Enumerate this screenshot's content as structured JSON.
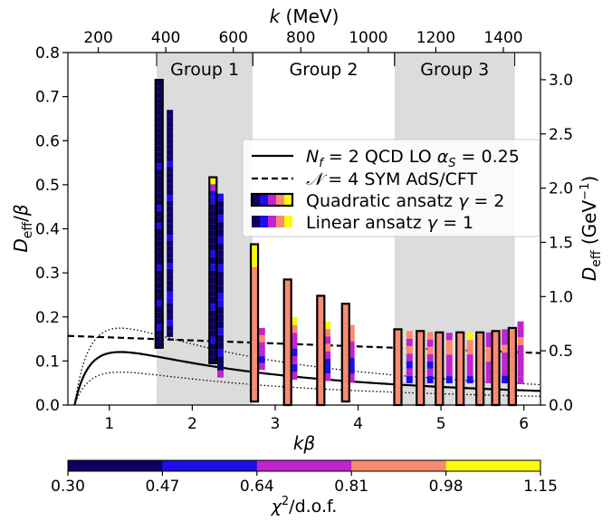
{
  "chart_data": {
    "type": "scatter",
    "x": {
      "label": "kβ",
      "range": [
        0.5,
        6.2
      ],
      "ticks": [
        1,
        2,
        3,
        4,
        5,
        6
      ],
      "tick_labels": [
        "1",
        "2",
        "3",
        "4",
        "5",
        "6"
      ]
    },
    "y_left": {
      "label": "D_eff/β",
      "range": [
        0.0,
        0.8
      ],
      "ticks": [
        0.0,
        0.1,
        0.2,
        0.3,
        0.4,
        0.5,
        0.6,
        0.7,
        0.8
      ],
      "tick_labels": [
        "0.0",
        "0.1",
        "0.2",
        "0.3",
        "0.4",
        "0.5",
        "0.6",
        "0.7",
        "0.8"
      ]
    },
    "y_right": {
      "label": "D_eff (GeV⁻¹)",
      "range": [
        0.0,
        3.25
      ],
      "ticks": [
        0.0,
        0.5,
        1.0,
        1.5,
        2.0,
        2.5,
        3.0
      ],
      "tick_labels": [
        "0.0",
        "0.5",
        "1.0",
        "1.5",
        "2.0",
        "2.5",
        "3.0"
      ]
    },
    "x_top": {
      "label": "k (MeV)",
      "range": [
        110,
        1510
      ],
      "ticks": [
        200,
        400,
        600,
        800,
        1000,
        1200,
        1400
      ],
      "tick_labels": [
        "200",
        "400",
        "600",
        "800",
        "1000",
        "1200",
        "1400"
      ]
    },
    "groups": [
      {
        "label": "Group 1",
        "x_range": [
          1.57,
          2.73
        ]
      },
      {
        "label": "Group 2",
        "x_range": [
          2.73,
          4.44
        ]
      },
      {
        "label": "Group 3",
        "x_range": [
          4.44,
          5.89
        ]
      }
    ],
    "legend": {
      "position": "center-right",
      "entries": [
        {
          "label": "N_f = 2 QCD LO α_S = 0.25",
          "style": "solid"
        },
        {
          "label": "𝒩 = 4 SYM AdS/CFT",
          "style": "dashed"
        },
        {
          "label": "Quadratic ansatz γ = 2",
          "style": "box-outlined"
        },
        {
          "label": "Linear ansatz γ = 1",
          "style": "box-plain"
        }
      ]
    },
    "colorbar": {
      "label": "χ²/d.o.f.",
      "boundaries": [
        0.3,
        0.47,
        0.64,
        0.81,
        0.98,
        1.15
      ],
      "tick_labels": [
        "0.30",
        "0.47",
        "0.64",
        "0.81",
        "0.98",
        "1.15"
      ],
      "colors": [
        "#0d0060",
        "#1e0ee8",
        "#c023cf",
        "#f98a70",
        "#fafa0c"
      ]
    },
    "curves": {
      "qcd_lo": {
        "A": 0.3,
        "B": -0.17,
        "C": -0.012
      },
      "qcd_band_upper_factor": 1.45,
      "qcd_band_lower_factor": 0.62,
      "sym_ads_cft": {
        "y_at_0p5": 0.157,
        "y_at_6p2": 0.118
      }
    },
    "quadratic_ansatz": [
      {
        "x": 1.6,
        "y_min": 0.13,
        "y_max": 0.738,
        "cells": [
          0,
          0,
          0,
          1,
          0,
          0,
          0,
          1,
          0,
          0,
          0,
          0,
          0,
          1,
          0,
          0,
          0,
          0,
          0,
          0,
          1,
          0,
          0,
          1,
          0,
          0,
          0,
          0,
          0,
          0,
          1,
          0,
          0,
          0,
          0,
          0,
          0,
          0,
          0,
          0,
          0,
          0,
          0,
          0,
          0
        ]
      },
      {
        "x": 2.25,
        "y_min": 0.095,
        "y_max": 0.517,
        "cells": [
          0,
          0,
          0,
          1,
          0,
          0,
          0,
          0,
          1,
          0,
          0,
          0,
          0,
          0,
          1,
          0,
          1,
          0,
          0,
          0,
          0,
          0,
          0,
          0,
          1,
          1,
          2,
          4
        ]
      },
      {
        "x": 2.75,
        "y_min": 0.008,
        "y_max": 0.365,
        "cells": [
          3,
          3,
          3,
          3,
          3,
          3,
          3,
          3,
          3,
          3,
          3,
          3,
          3,
          3,
          3,
          3,
          3,
          3,
          4,
          4,
          4
        ]
      },
      {
        "x": 3.15,
        "y_min": 0.0,
        "y_max": 0.285,
        "cells": [
          3,
          3,
          3,
          3,
          3,
          3,
          3,
          3,
          3,
          3,
          3,
          3,
          3,
          3,
          3,
          3,
          3
        ]
      },
      {
        "x": 3.55,
        "y_min": 0.0,
        "y_max": 0.248,
        "cells": [
          3,
          3,
          3,
          3,
          3,
          3,
          3,
          3,
          3,
          3,
          3,
          3,
          3,
          3,
          3
        ]
      },
      {
        "x": 3.85,
        "y_min": 0.008,
        "y_max": 0.23,
        "cells": [
          3,
          3,
          3,
          3,
          3,
          3,
          3,
          3,
          3,
          3,
          3,
          3,
          3
        ]
      },
      {
        "x": 4.48,
        "y_min": 0.0,
        "y_max": 0.172,
        "cells": [
          3,
          3,
          3,
          3,
          3,
          3,
          3,
          3,
          3,
          3
        ]
      },
      {
        "x": 4.75,
        "y_min": 0.0,
        "y_max": 0.168,
        "cells": [
          3,
          3,
          3,
          3,
          3,
          3,
          3,
          3,
          3,
          3
        ]
      },
      {
        "x": 4.98,
        "y_min": 0.0,
        "y_max": 0.165,
        "cells": [
          3,
          3,
          3,
          3,
          3,
          3,
          3,
          3,
          3,
          3
        ]
      },
      {
        "x": 5.23,
        "y_min": 0.0,
        "y_max": 0.165,
        "cells": [
          3,
          3,
          3,
          3,
          3,
          3,
          3,
          3,
          3,
          3
        ]
      },
      {
        "x": 5.47,
        "y_min": 0.0,
        "y_max": 0.165,
        "cells": [
          3,
          3,
          3,
          3,
          3,
          3,
          3,
          3,
          3,
          3
        ]
      },
      {
        "x": 5.66,
        "y_min": 0.0,
        "y_max": 0.168,
        "cells": [
          3,
          3,
          3,
          3,
          3,
          3,
          3,
          3,
          3,
          3
        ]
      },
      {
        "x": 5.86,
        "y_min": 0.0,
        "y_max": 0.175,
        "cells": [
          3,
          3,
          3,
          3,
          3,
          3,
          3,
          3,
          3,
          3
        ]
      }
    ],
    "linear_ansatz": [
      {
        "x": 1.73,
        "y_min": 0.155,
        "y_max": 0.67,
        "cells": [
          0,
          0,
          1,
          0,
          0,
          0,
          1,
          1,
          0,
          0,
          0,
          0,
          1,
          0,
          0,
          0,
          0,
          1,
          0,
          0,
          0,
          0,
          0,
          0,
          1,
          0,
          0,
          0,
          0,
          0,
          1,
          0,
          0,
          0,
          0,
          0,
          0,
          0,
          0,
          0
        ]
      },
      {
        "x": 2.34,
        "y_min": 0.063,
        "y_max": 0.48,
        "cells": [
          2,
          0,
          0,
          1,
          0,
          0,
          1,
          0,
          0,
          0,
          1,
          1,
          0,
          0,
          0,
          1,
          0,
          0,
          0,
          1,
          0,
          0,
          1,
          0,
          0,
          1
        ]
      },
      {
        "x": 2.84,
        "y_min": 0.08,
        "y_max": 0.175,
        "cells": [
          2,
          1,
          2,
          2,
          3,
          2
        ]
      },
      {
        "x": 3.23,
        "y_min": 0.058,
        "y_max": 0.2,
        "cells": [
          2,
          1,
          2,
          1,
          2,
          2,
          3,
          4
        ]
      },
      {
        "x": 3.63,
        "y_min": 0.055,
        "y_max": 0.19,
        "cells": [
          2,
          1,
          1,
          2,
          3,
          2,
          3,
          4
        ]
      },
      {
        "x": 3.92,
        "y_min": 0.053,
        "y_max": 0.182,
        "cells": [
          2,
          1,
          1,
          2,
          2,
          3,
          3
        ]
      },
      {
        "x": 4.62,
        "y_min": 0.05,
        "y_max": 0.168,
        "cells": [
          1,
          2,
          1,
          2,
          3,
          2,
          3
        ]
      },
      {
        "x": 4.87,
        "y_min": 0.05,
        "y_max": 0.166,
        "cells": [
          1,
          2,
          1,
          2,
          3,
          2,
          3
        ]
      },
      {
        "x": 5.1,
        "y_min": 0.05,
        "y_max": 0.164,
        "cells": [
          1,
          2,
          2,
          2,
          3,
          3,
          2
        ]
      },
      {
        "x": 5.35,
        "y_min": 0.05,
        "y_max": 0.165,
        "cells": [
          1,
          2,
          2,
          2,
          3,
          3,
          4
        ]
      },
      {
        "x": 5.58,
        "y_min": 0.05,
        "y_max": 0.165,
        "cells": [
          2,
          2,
          2,
          3,
          3,
          2,
          2
        ]
      },
      {
        "x": 5.77,
        "y_min": 0.05,
        "y_max": 0.172,
        "cells": [
          1,
          2,
          2,
          2,
          3,
          2,
          2
        ]
      },
      {
        "x": 5.96,
        "y_min": 0.048,
        "y_max": 0.19,
        "cells": [
          2,
          2,
          2,
          2,
          2,
          3,
          2,
          2
        ]
      }
    ]
  }
}
